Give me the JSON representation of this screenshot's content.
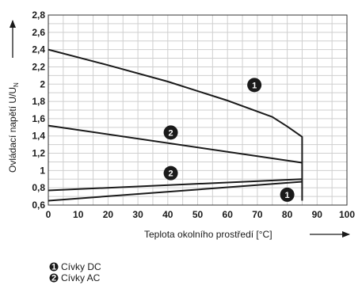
{
  "chart_data": {
    "type": "line",
    "xlabel": "Teplota okolního prostředí [°C]",
    "ylabel": "Ovládací napětí U/U",
    "ylabel_sub": "N",
    "xlim": [
      0,
      100
    ],
    "ylim": [
      0.6,
      2.8
    ],
    "xticks": [
      0,
      10,
      20,
      30,
      40,
      50,
      60,
      70,
      80,
      90,
      100
    ],
    "yticks": [
      0.6,
      0.8,
      1,
      1.2,
      1.4,
      1.6,
      1.8,
      2,
      2.2,
      2.4,
      2.6,
      2.8
    ],
    "ytick_labels": [
      "0,6",
      "0,8",
      "1",
      "1,2",
      "1,4",
      "1,6",
      "1,8",
      "2",
      "2,2",
      "2,4",
      "2,6",
      "2,8"
    ],
    "grid": true,
    "series": [
      {
        "name": "Cívky DC",
        "marker": "1",
        "x": [
          0,
          20,
          40,
          60,
          75,
          80,
          85,
          85,
          85
        ],
        "y": [
          2.4,
          2.22,
          2.03,
          1.81,
          1.62,
          1.51,
          1.39,
          0.88,
          0.65
        ]
      },
      {
        "name": "Cívky AC",
        "marker": "2",
        "x": [
          0,
          85
        ],
        "y": [
          1.52,
          1.09
        ]
      },
      {
        "name": "Cívky AC",
        "marker": "2",
        "x": [
          0,
          85
        ],
        "y": [
          0.77,
          0.9
        ]
      },
      {
        "name": "Cívky DC",
        "marker": "1",
        "x": [
          0,
          85
        ],
        "y": [
          0.65,
          0.87
        ]
      }
    ],
    "annotations": [
      {
        "text": "1",
        "x": 69,
        "y": 1.99
      },
      {
        "text": "2",
        "x": 41,
        "y": 1.44
      },
      {
        "text": "2",
        "x": 41,
        "y": 0.97
      },
      {
        "text": "1",
        "x": 80,
        "y": 0.72
      }
    ]
  },
  "legend": [
    {
      "marker": "1",
      "label": "Cívky DC"
    },
    {
      "marker": "2",
      "label": "Cívky AC"
    }
  ]
}
